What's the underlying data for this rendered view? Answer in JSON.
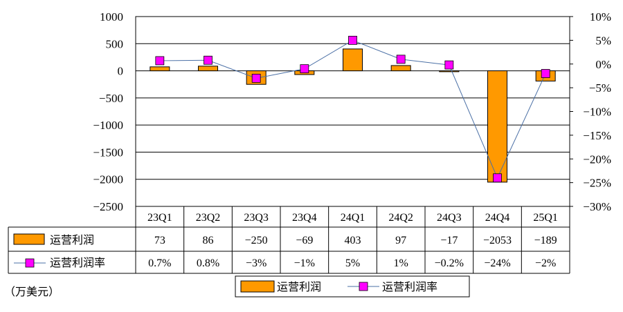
{
  "chart_data": {
    "type": "bar",
    "categories": [
      "23Q1",
      "23Q2",
      "23Q3",
      "23Q4",
      "24Q1",
      "24Q2",
      "24Q3",
      "24Q4",
      "25Q1"
    ],
    "series": [
      {
        "name": "运营利润",
        "type": "bar",
        "axis": "left",
        "color": "#FF9900",
        "values": [
          73,
          86,
          -250,
          -69,
          403,
          97,
          -17,
          -2053,
          -189
        ],
        "labels": [
          "73",
          "86",
          "−250",
          "−69",
          "403",
          "97",
          "−17",
          "−2053",
          "−189"
        ]
      },
      {
        "name": "运营利润率",
        "type": "line",
        "axis": "right",
        "color": "#FF00FF",
        "line_color": "#4A6FA5",
        "values": [
          0.7,
          0.8,
          -3,
          -1,
          5,
          1,
          -0.2,
          -24,
          -2
        ],
        "labels": [
          "0.7%",
          "0.8%",
          "−3%",
          "−1%",
          "5%",
          "1%",
          "−0.2%",
          "−24%",
          "−2%"
        ]
      }
    ],
    "y_left": {
      "range": [
        -2500,
        1000
      ],
      "ticks": [
        "1000",
        "500",
        "0",
        "−500",
        "−1000",
        "−1500",
        "−2000",
        "−2500"
      ]
    },
    "y_right": {
      "range": [
        -30,
        10
      ],
      "ticks": [
        "10%",
        "5%",
        "0%",
        "−5%",
        "−10%",
        "−15%",
        "−20%",
        "−25%",
        "−30%"
      ]
    },
    "grid": true,
    "legend_position": "bottom",
    "unit_note": "（万美元）"
  }
}
